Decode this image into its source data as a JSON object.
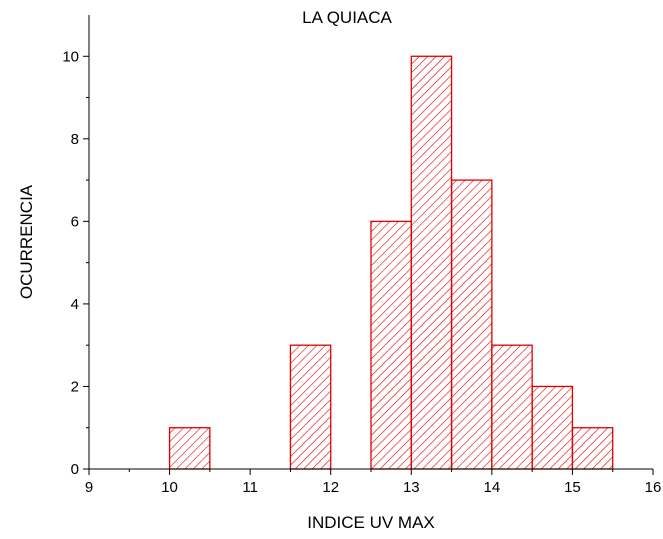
{
  "chart_data": {
    "type": "bar",
    "title": "LA QUIACA",
    "xlabel": "INDICE UV MAX",
    "ylabel": "OCURRENCIA",
    "xlim": [
      9,
      16
    ],
    "ylim": [
      0,
      11
    ],
    "xticks": [
      "9",
      "10",
      "11",
      "12",
      "13",
      "14",
      "15",
      "16"
    ],
    "yticks": [
      "0",
      "2",
      "4",
      "6",
      "8",
      "10"
    ],
    "bin_width": 0.5,
    "bins": [
      {
        "start": 10.0,
        "value": 1
      },
      {
        "start": 11.5,
        "value": 3
      },
      {
        "start": 12.5,
        "value": 6
      },
      {
        "start": 13.0,
        "value": 10
      },
      {
        "start": 13.5,
        "value": 7
      },
      {
        "start": 14.0,
        "value": 3
      },
      {
        "start": 14.5,
        "value": 2
      },
      {
        "start": 15.0,
        "value": 1
      }
    ],
    "bar_color": "#e00000",
    "fill_pattern": "diagonal-hatch",
    "grid": false
  }
}
